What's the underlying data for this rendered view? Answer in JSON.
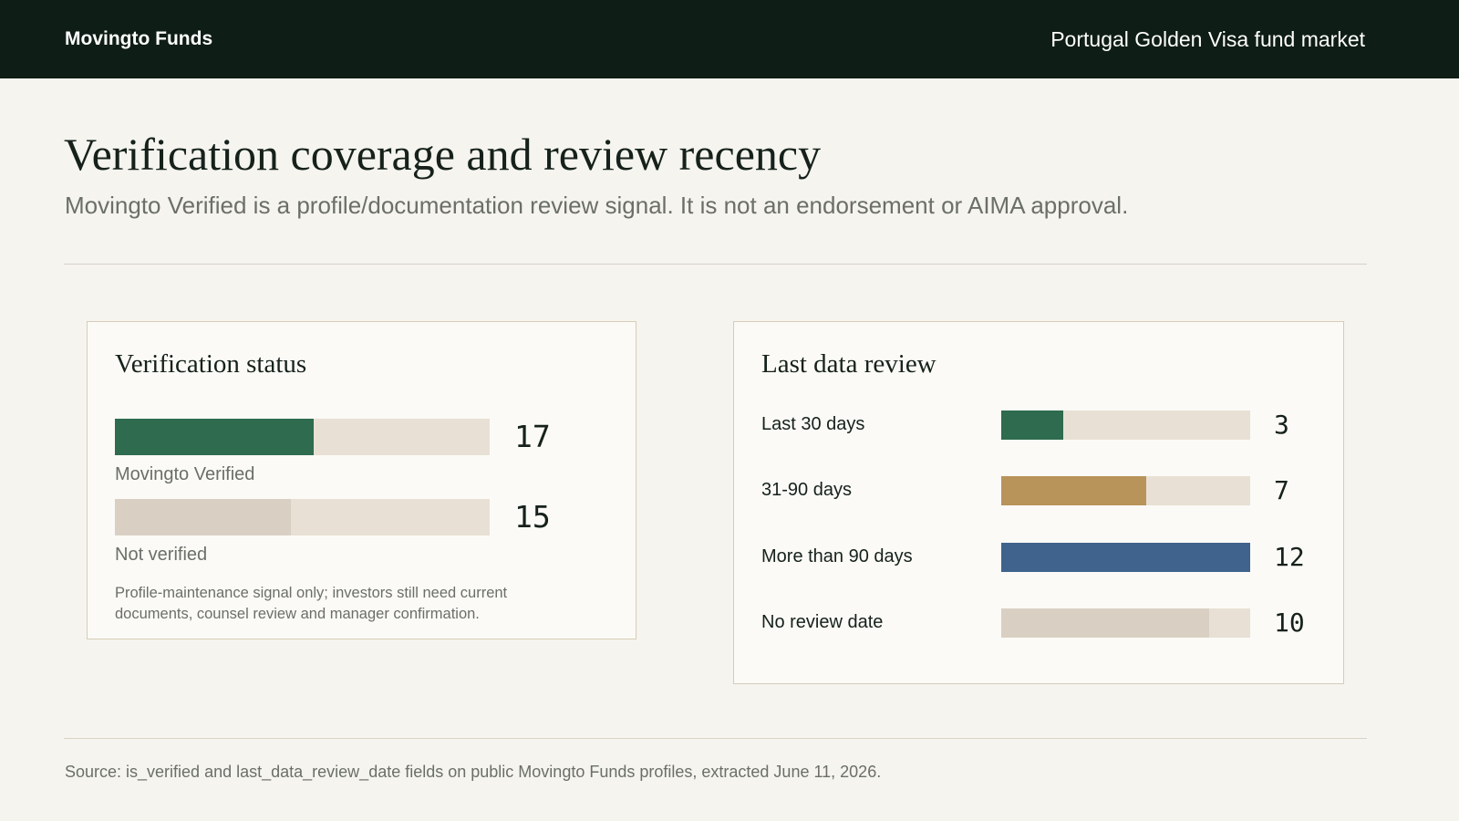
{
  "header": {
    "brand": "Movingto Funds",
    "section": "Portugal Golden Visa fund market"
  },
  "title": "Verification coverage and review recency",
  "subtitle": "Movingto Verified is a profile/documentation review signal. It is not an endorsement or AIMA approval.",
  "chart_data": [
    {
      "type": "bar",
      "orientation": "horizontal",
      "title": "Verification status",
      "categories": [
        "Movingto Verified",
        "Not verified"
      ],
      "values": [
        17,
        15
      ],
      "colors": [
        "#2e6b4f",
        "#d9d0c3"
      ],
      "xlim": [
        0,
        32
      ],
      "note": "Profile-maintenance signal only; investors still need current documents, counsel review and manager confirmation."
    },
    {
      "type": "bar",
      "orientation": "horizontal",
      "title": "Last data review",
      "categories": [
        "Last 30 days",
        "31-90 days",
        "More than 90 days",
        "No review date"
      ],
      "values": [
        3,
        7,
        12,
        10
      ],
      "colors": [
        "#2e6b4f",
        "#b8935a",
        "#3f638c",
        "#d9d0c3"
      ],
      "xlim": [
        0,
        12
      ]
    }
  ],
  "footer": "Source: is_verified and last_data_review_date fields on public Movingto Funds profiles, extracted June 11, 2026."
}
